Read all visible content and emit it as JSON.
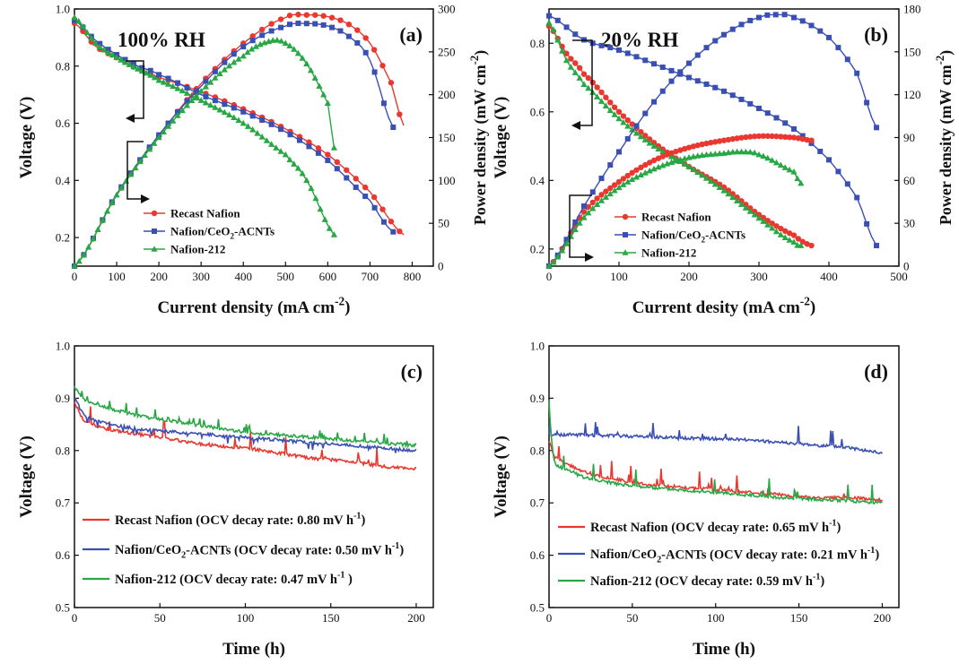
{
  "colors": {
    "red": "#e8382f",
    "blue": "#3a4fb4",
    "green": "#28a745"
  },
  "chart_data": [
    {
      "panel": "(a)",
      "type": "line",
      "annotation": "100% RH",
      "xlabel": "Current density (mA cm",
      "xlabel_sup": "-2",
      "xlabel_end": ")",
      "ylabel": "Voltage (V)",
      "ylabel2": "Power density (mW cm",
      "ylabel2_sup": "-2",
      "ylabel2_end": ")",
      "xlim": [
        0,
        850
      ],
      "ylim": [
        0.1,
        1.0
      ],
      "y2lim": [
        0,
        300
      ],
      "xticks": [
        0,
        100,
        200,
        300,
        400,
        500,
        600,
        700,
        800
      ],
      "yticks": [
        0.2,
        0.4,
        0.6,
        0.8,
        1.0
      ],
      "y2ticks": [
        0,
        50,
        100,
        150,
        200,
        250,
        300
      ],
      "legend": [
        "Recast Nafion",
        "Nafion/CeO",
        "Nafion-212"
      ],
      "legend_sub": "2",
      "legend_suffix": "-ACNTs",
      "series": [
        {
          "name": "Recast Nafion",
          "color": "red",
          "marker": "circle",
          "axis": "left",
          "x": [
            0,
            50,
            100,
            150,
            200,
            300,
            400,
            500,
            600,
            700,
            780
          ],
          "y": [
            0.95,
            0.87,
            0.83,
            0.79,
            0.76,
            0.71,
            0.65,
            0.58,
            0.49,
            0.36,
            0.21
          ]
        },
        {
          "name": "Nafion/CeO2-ACNTs",
          "color": "blue",
          "marker": "square",
          "axis": "left",
          "x": [
            0,
            50,
            100,
            150,
            200,
            300,
            400,
            500,
            600,
            700,
            755
          ],
          "y": [
            0.96,
            0.89,
            0.84,
            0.8,
            0.77,
            0.7,
            0.64,
            0.57,
            0.47,
            0.33,
            0.22
          ]
        },
        {
          "name": "Nafion-212",
          "color": "green",
          "marker": "triangle",
          "axis": "left",
          "x": [
            0,
            50,
            100,
            150,
            200,
            300,
            400,
            500,
            550,
            615
          ],
          "y": [
            0.97,
            0.88,
            0.83,
            0.79,
            0.75,
            0.68,
            0.6,
            0.49,
            0.4,
            0.21
          ]
        },
        {
          "name": "Recast Nafion",
          "color": "red",
          "marker": "circle",
          "axis": "right",
          "x": [
            0,
            100,
            200,
            300,
            400,
            500,
            550,
            600,
            650,
            700,
            750,
            780
          ],
          "y": [
            0,
            83,
            152,
            213,
            260,
            290,
            293,
            291,
            282,
            260,
            214,
            164
          ]
        },
        {
          "name": "Nafion/CeO2-ACNTs",
          "color": "blue",
          "marker": "square",
          "axis": "right",
          "x": [
            0,
            100,
            200,
            300,
            400,
            500,
            550,
            600,
            650,
            700,
            755
          ],
          "y": [
            0,
            84,
            153,
            210,
            256,
            280,
            283,
            280,
            268,
            240,
            162
          ]
        },
        {
          "name": "Nafion-212",
          "color": "green",
          "marker": "triangle",
          "axis": "right",
          "x": [
            0,
            100,
            200,
            300,
            400,
            460,
            500,
            550,
            600,
            615
          ],
          "y": [
            0,
            83,
            150,
            204,
            245,
            262,
            260,
            236,
            190,
            138
          ]
        }
      ]
    },
    {
      "panel": "(b)",
      "type": "line",
      "annotation": "20% RH",
      "xlabel": "Current desity (mA cm",
      "xlabel_sup": "-2",
      "xlabel_end": ")",
      "ylabel": "Voltage (V)",
      "ylabel2": "Power density (mW cm",
      "ylabel2_sup": "-2",
      "ylabel2_end": ")",
      "xlim": [
        0,
        500
      ],
      "ylim": [
        0.15,
        0.9
      ],
      "y2lim": [
        0,
        180
      ],
      "xticks": [
        0,
        100,
        200,
        300,
        400,
        500
      ],
      "yticks": [
        0.2,
        0.4,
        0.6,
        0.8
      ],
      "y2ticks": [
        0,
        30,
        60,
        90,
        120,
        150,
        180
      ],
      "legend": [
        "Recast Nafion",
        "Nafion/CeO",
        "Nafion-212"
      ],
      "legend_sub": "2",
      "legend_suffix": "-ACNTs",
      "series": [
        {
          "name": "Recast Nafion",
          "color": "red",
          "marker": "circle",
          "axis": "left",
          "x": [
            0,
            25,
            50,
            100,
            150,
            200,
            250,
            300,
            350,
            375
          ],
          "y": [
            0.85,
            0.77,
            0.71,
            0.6,
            0.51,
            0.44,
            0.38,
            0.3,
            0.24,
            0.21
          ]
        },
        {
          "name": "Nafion/CeO2-ACNTs",
          "color": "blue",
          "marker": "square",
          "axis": "left",
          "x": [
            0,
            50,
            100,
            150,
            200,
            250,
            300,
            350,
            400,
            440,
            468
          ],
          "y": [
            0.88,
            0.81,
            0.78,
            0.74,
            0.7,
            0.66,
            0.61,
            0.55,
            0.46,
            0.35,
            0.21
          ]
        },
        {
          "name": "Nafion-212",
          "color": "green",
          "marker": "triangle",
          "axis": "left",
          "x": [
            0,
            25,
            50,
            100,
            150,
            200,
            250,
            300,
            350,
            360
          ],
          "y": [
            0.86,
            0.75,
            0.68,
            0.58,
            0.5,
            0.44,
            0.37,
            0.29,
            0.22,
            0.21
          ]
        },
        {
          "name": "Recast Nafion",
          "color": "red",
          "marker": "circle",
          "axis": "right",
          "x": [
            0,
            50,
            100,
            150,
            200,
            250,
            300,
            350,
            375
          ],
          "y": [
            0,
            38,
            59,
            74,
            83,
            88,
            91,
            90,
            88
          ]
        },
        {
          "name": "Nafion/CeO2-ACNTs",
          "color": "blue",
          "marker": "square",
          "axis": "right",
          "x": [
            0,
            50,
            100,
            150,
            200,
            250,
            300,
            330,
            350,
            400,
            440,
            468
          ],
          "y": [
            0,
            42,
            80,
            115,
            142,
            162,
            174,
            176,
            174,
            160,
            135,
            97
          ]
        },
        {
          "name": "Nafion-212",
          "color": "green",
          "marker": "triangle",
          "axis": "right",
          "x": [
            0,
            50,
            100,
            150,
            200,
            250,
            275,
            300,
            350,
            360
          ],
          "y": [
            0,
            34,
            55,
            68,
            76,
            79,
            80,
            78,
            66,
            58
          ]
        }
      ]
    },
    {
      "panel": "(c)",
      "type": "line",
      "xlabel": "Time (h)",
      "ylabel": "Voltage (V)",
      "xlim": [
        0,
        210
      ],
      "ylim": [
        0.5,
        1.0
      ],
      "xticks": [
        0,
        50,
        100,
        150,
        200
      ],
      "yticks": [
        0.5,
        0.6,
        0.7,
        0.8,
        0.9,
        1.0
      ],
      "legend": [
        {
          "text": "Recast Nafion (OCV decay rate: 0.80 mV h",
          "sup": "-1",
          "end": ")"
        },
        {
          "text": "Nafion/CeO",
          "sub": "2",
          "text2": "-ACNTs (OCV decay rate: 0.50 mV h",
          "sup": "-1",
          "end": ")"
        },
        {
          "text": "Nafion-212 (OCV decay rate: 0.47 mV h",
          "sup": "-1",
          "end": " )"
        }
      ],
      "series": [
        {
          "name": "Recast Nafion",
          "color": "red",
          "x": [
            0,
            5,
            10,
            20,
            40,
            60,
            80,
            100,
            120,
            140,
            160,
            180,
            200
          ],
          "y": [
            0.89,
            0.86,
            0.85,
            0.84,
            0.83,
            0.82,
            0.81,
            0.805,
            0.795,
            0.785,
            0.78,
            0.77,
            0.765
          ]
        },
        {
          "name": "Nafion/CeO2-ACNTs",
          "color": "blue",
          "x": [
            0,
            5,
            10,
            20,
            40,
            60,
            80,
            100,
            120,
            140,
            160,
            180,
            200
          ],
          "y": [
            0.9,
            0.87,
            0.86,
            0.85,
            0.84,
            0.835,
            0.83,
            0.825,
            0.82,
            0.815,
            0.81,
            0.805,
            0.8
          ]
        },
        {
          "name": "Nafion-212",
          "color": "green",
          "x": [
            0,
            5,
            10,
            20,
            40,
            60,
            80,
            100,
            120,
            140,
            160,
            180,
            200
          ],
          "y": [
            0.92,
            0.9,
            0.89,
            0.88,
            0.865,
            0.855,
            0.845,
            0.835,
            0.83,
            0.825,
            0.82,
            0.815,
            0.81
          ]
        }
      ]
    },
    {
      "panel": "(d)",
      "type": "line",
      "xlabel": "Time (h)",
      "ylabel": "Voltage (V)",
      "xlim": [
        0,
        210
      ],
      "ylim": [
        0.5,
        1.0
      ],
      "xticks": [
        0,
        50,
        100,
        150,
        200
      ],
      "yticks": [
        0.5,
        0.6,
        0.7,
        0.8,
        0.9,
        1.0
      ],
      "legend": [
        {
          "text": "Recast Nafion (OCV decay rate: 0.65 mV h",
          "sup": "-1",
          "end": ")"
        },
        {
          "text": "Nafion/CeO",
          "sub": "2",
          "text2": "-ACNTs (OCV decay rate: 0.21 mV h",
          "sup": "-1",
          "end": ")"
        },
        {
          "text": "Nafion-212 (OCV decay rate: 0.59 mV h",
          "sup": "-1",
          "end": ")"
        }
      ],
      "series": [
        {
          "name": "Recast Nafion",
          "color": "red",
          "x": [
            0,
            3,
            10,
            20,
            40,
            60,
            80,
            100,
            120,
            140,
            160,
            180,
            200
          ],
          "y": [
            0.82,
            0.79,
            0.775,
            0.76,
            0.745,
            0.735,
            0.73,
            0.725,
            0.72,
            0.715,
            0.71,
            0.71,
            0.705
          ]
        },
        {
          "name": "Nafion/CeO2-ACNTs",
          "color": "blue",
          "x": [
            0,
            20,
            40,
            60,
            80,
            100,
            120,
            140,
            160,
            180,
            200
          ],
          "y": [
            0.83,
            0.83,
            0.828,
            0.826,
            0.824,
            0.822,
            0.82,
            0.815,
            0.81,
            0.805,
            0.795
          ]
        },
        {
          "name": "Nafion-212",
          "color": "green",
          "x": [
            0,
            3,
            10,
            20,
            40,
            60,
            80,
            100,
            120,
            140,
            160,
            180,
            200
          ],
          "y": [
            0.87,
            0.78,
            0.765,
            0.75,
            0.737,
            0.73,
            0.725,
            0.72,
            0.715,
            0.71,
            0.707,
            0.704,
            0.7
          ]
        }
      ]
    }
  ]
}
